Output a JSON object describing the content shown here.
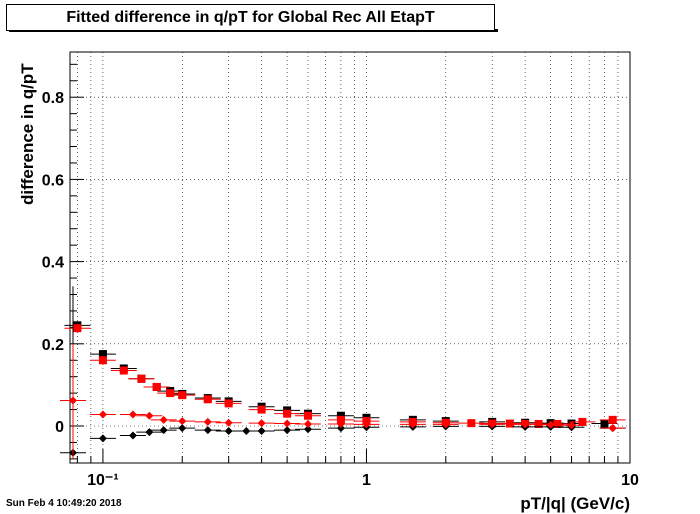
{
  "chart_data": {
    "type": "scatter",
    "title": "Fitted difference in q/pT for Global Rec All EtapT",
    "xlabel": "pT/|q| (GeV/c)",
    "ylabel": "difference in q/pT",
    "xscale": "log",
    "xlim": [
      0.075,
      10
    ],
    "ylim": [
      -0.09,
      0.91
    ],
    "x_ticks": [
      {
        "value": 0.1,
        "label": "10⁻¹"
      },
      {
        "value": 1,
        "label": "1"
      },
      {
        "value": 10,
        "label": "10"
      }
    ],
    "y_ticks": [
      {
        "value": 0,
        "label": "0"
      },
      {
        "value": 0.2,
        "label": "0.2"
      },
      {
        "value": 0.4,
        "label": "0.4"
      },
      {
        "value": 0.6,
        "label": "0.6"
      },
      {
        "value": 0.8,
        "label": "0.8"
      }
    ],
    "grid": true,
    "series": [
      {
        "marker": "square",
        "color": "#000000",
        "x": [
          0.08,
          0.1,
          0.12,
          0.14,
          0.16,
          0.18,
          0.2,
          0.25,
          0.3,
          0.4,
          0.5,
          0.6,
          0.8,
          1,
          1.5,
          2,
          3,
          4,
          5,
          6,
          8
        ],
        "y": [
          0.245,
          0.175,
          0.14,
          0.115,
          0.095,
          0.085,
          0.078,
          0.068,
          0.06,
          0.047,
          0.038,
          0.03,
          0.025,
          0.02,
          0.015,
          0.012,
          0.01,
          0.008,
          0.007,
          0.006,
          0.006
        ]
      },
      {
        "marker": "square",
        "color": "#ff0000",
        "x": [
          0.08,
          0.1,
          0.12,
          0.14,
          0.16,
          0.18,
          0.2,
          0.25,
          0.3,
          0.4,
          0.5,
          0.6,
          0.8,
          1,
          1.5,
          2,
          2.5,
          3,
          3.5,
          4,
          4.5,
          5.3,
          6.6,
          8.6
        ],
        "y": [
          0.238,
          0.16,
          0.135,
          0.115,
          0.095,
          0.08,
          0.075,
          0.065,
          0.055,
          0.04,
          0.03,
          0.025,
          0.015,
          0.012,
          0.01,
          0.008,
          0.007,
          0.006,
          0.006,
          0.005,
          0.005,
          0.005,
          0.01,
          0.015
        ]
      },
      {
        "marker": "diamond",
        "color": "#000000",
        "x": [
          0.077,
          0.1,
          0.13,
          0.15,
          0.17,
          0.2,
          0.25,
          0.3,
          0.35,
          0.4,
          0.5,
          0.6,
          0.8,
          1,
          1.5,
          2,
          3,
          4,
          5,
          6,
          8.6
        ],
        "y": [
          -0.065,
          -0.03,
          -0.023,
          -0.015,
          -0.01,
          -0.005,
          -0.01,
          -0.012,
          -0.012,
          -0.012,
          -0.01,
          -0.008,
          -0.005,
          -0.003,
          -0.002,
          -0.001,
          -0.001,
          -0.002,
          -0.002,
          -0.003,
          -0.005
        ]
      },
      {
        "marker": "diamond",
        "color": "#ff0000",
        "x": [
          0.077,
          0.1,
          0.13,
          0.15,
          0.17,
          0.2,
          0.25,
          0.3,
          0.4,
          0.5,
          0.6,
          0.8,
          1,
          1.5,
          2,
          3,
          4,
          5,
          6,
          8.6
        ],
        "y": [
          0.062,
          0.028,
          0.028,
          0.025,
          0.015,
          0.012,
          0.01,
          0.008,
          0.007,
          0.006,
          0.005,
          0.005,
          0.004,
          0.004,
          0.004,
          0.004,
          0.004,
          0.003,
          0.002,
          -0.005
        ]
      }
    ]
  },
  "footer": {
    "timestamp": "Sun Feb  4 10:49:20 2018"
  }
}
